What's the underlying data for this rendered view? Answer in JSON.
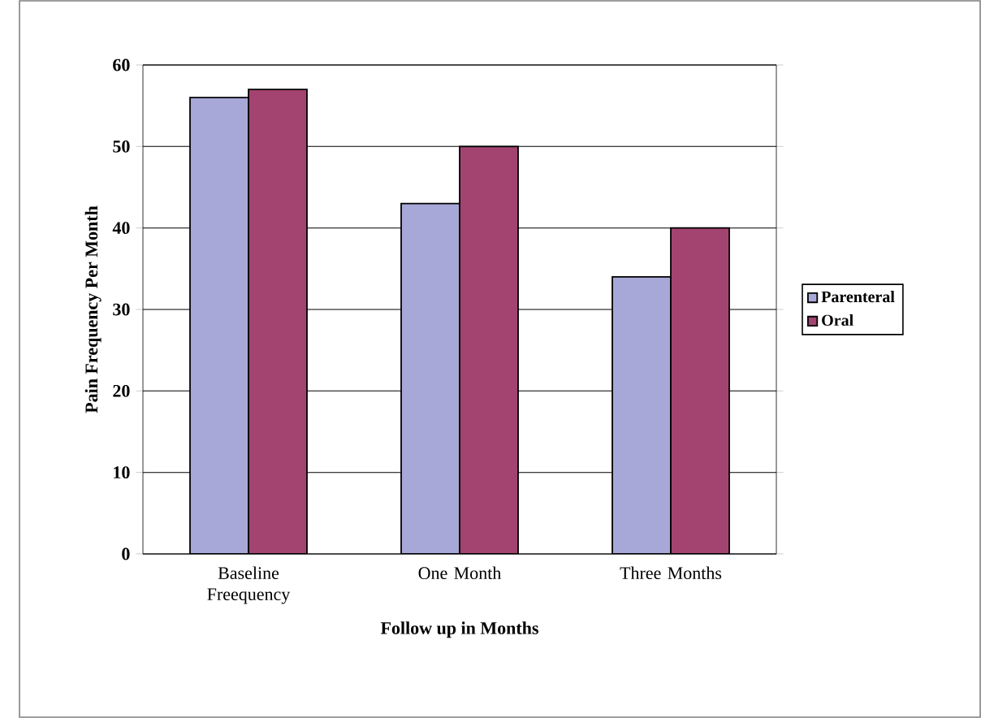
{
  "chart_data": {
    "type": "bar",
    "xlabel": "Follow up in Months",
    "ylabel": "Pain Frequency Per Month",
    "categories": [
      "Baseline Freequency",
      "One Month",
      "Three Months"
    ],
    "series": [
      {
        "name": "Parenteral",
        "color": "#a8a8d8",
        "values": [
          56,
          43,
          34
        ]
      },
      {
        "name": "Oral",
        "color": "#a34470",
        "values": [
          57,
          50,
          40
        ]
      }
    ],
    "ylim": [
      0,
      60
    ],
    "yticks": [
      0,
      10,
      20,
      30,
      40,
      50,
      60
    ],
    "grid": "y",
    "legend": "right"
  }
}
